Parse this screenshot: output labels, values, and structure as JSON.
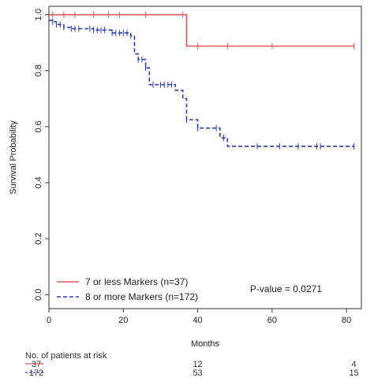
{
  "chart_data": {
    "type": "line",
    "title": "",
    "xlabel": "Months",
    "ylabel": "Survival Probability",
    "xlim": [
      0,
      84
    ],
    "ylim": [
      0,
      1.0
    ],
    "x_ticks": [
      0,
      20,
      40,
      60,
      80
    ],
    "y_ticks": [
      0.0,
      0.2,
      0.4,
      0.6,
      0.8,
      1.0
    ],
    "y_tick_labels": [
      "0.0",
      "0.2",
      "0.4",
      "0.6",
      "0.8",
      "1.0"
    ],
    "grid": false,
    "legend_position": "bottom-left",
    "annotation": "P-value = 0.0271",
    "series": [
      {
        "name": "7 or less Markers (n=37)",
        "color": "#e05a5a",
        "dash": "solid",
        "steps": [
          [
            0,
            1.0
          ],
          [
            37,
            0.888
          ],
          [
            82,
            0.888
          ]
        ],
        "censor_x": [
          1,
          4,
          7,
          12,
          16,
          19,
          26,
          36,
          40,
          48,
          60,
          82
        ]
      },
      {
        "name": "8 or more Markers (n=172)",
        "color": "#2b3fb8",
        "dash": "dashed",
        "steps": [
          [
            0,
            0.98
          ],
          [
            1,
            0.975
          ],
          [
            2,
            0.965
          ],
          [
            4,
            0.955
          ],
          [
            6,
            0.95
          ],
          [
            12,
            0.945
          ],
          [
            17,
            0.935
          ],
          [
            22,
            0.925
          ],
          [
            23,
            0.86
          ],
          [
            24,
            0.84
          ],
          [
            26,
            0.81
          ],
          [
            27,
            0.75
          ],
          [
            34,
            0.73
          ],
          [
            36,
            0.7
          ],
          [
            37,
            0.625
          ],
          [
            40,
            0.595
          ],
          [
            46,
            0.56
          ],
          [
            48,
            0.53
          ],
          [
            82,
            0.53
          ]
        ],
        "censor_x": [
          1,
          2,
          3,
          4,
          6,
          7,
          8,
          11,
          12,
          13,
          14,
          15,
          17,
          18,
          19,
          20,
          21,
          22,
          24,
          25,
          26,
          28,
          30,
          31,
          32,
          33,
          37,
          40,
          45,
          47,
          56,
          62,
          67,
          72,
          73,
          82
        ]
      }
    ],
    "risk_table": {
      "title": "No. of patients at risk",
      "times": [
        0,
        40,
        82
      ],
      "rows": [
        {
          "color": "#e05a5a",
          "dash": "solid",
          "values": [
            "37",
            "12",
            "4"
          ]
        },
        {
          "color": "#2b3fb8",
          "dash": "dashed",
          "values": [
            "172",
            "53",
            "15"
          ]
        }
      ]
    }
  }
}
